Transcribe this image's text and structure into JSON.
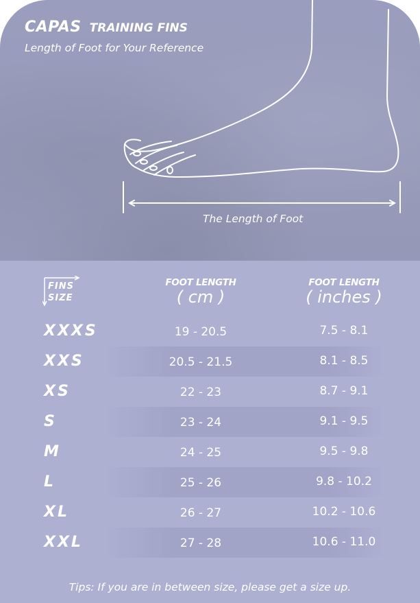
{
  "brand": {
    "logo": "CAPAS",
    "product": "TRAINING FINS"
  },
  "subtitle": "Length of Foot for Your Reference",
  "diagram_label": "The Length of Foot",
  "table": {
    "corner_top": "FINS",
    "corner_bottom": "SIZE",
    "columns": [
      {
        "title": "FOOT LENGTH",
        "unit": "(  cm  )"
      },
      {
        "title": "FOOT LENGTH",
        "unit": "( inches )"
      }
    ],
    "rows": [
      {
        "size": "XXXS",
        "cm": "19 - 20.5",
        "inches": "7.5 - 8.1"
      },
      {
        "size": "XXS",
        "cm": "20.5 - 21.5",
        "inches": "8.1 - 8.5"
      },
      {
        "size": "XS",
        "cm": "22 - 23",
        "inches": "8.7 - 9.1"
      },
      {
        "size": "S",
        "cm": "23 - 24",
        "inches": "9.1 - 9.5"
      },
      {
        "size": "M",
        "cm": "24 - 25",
        "inches": "9.5 - 9.8"
      },
      {
        "size": "L",
        "cm": "25 - 26",
        "inches": "9.8 - 10.2"
      },
      {
        "size": "XL",
        "cm": "26 - 27",
        "inches": "10.2 - 10.6"
      },
      {
        "size": "XXL",
        "cm": "27 - 28",
        "inches": "10.6 - 11.0"
      }
    ]
  },
  "tip": "Tips: If you are in between size, please get a size up.",
  "colors": {
    "panel": "#aeb0d2",
    "photo": "#989bba",
    "text": "#ffffff"
  }
}
